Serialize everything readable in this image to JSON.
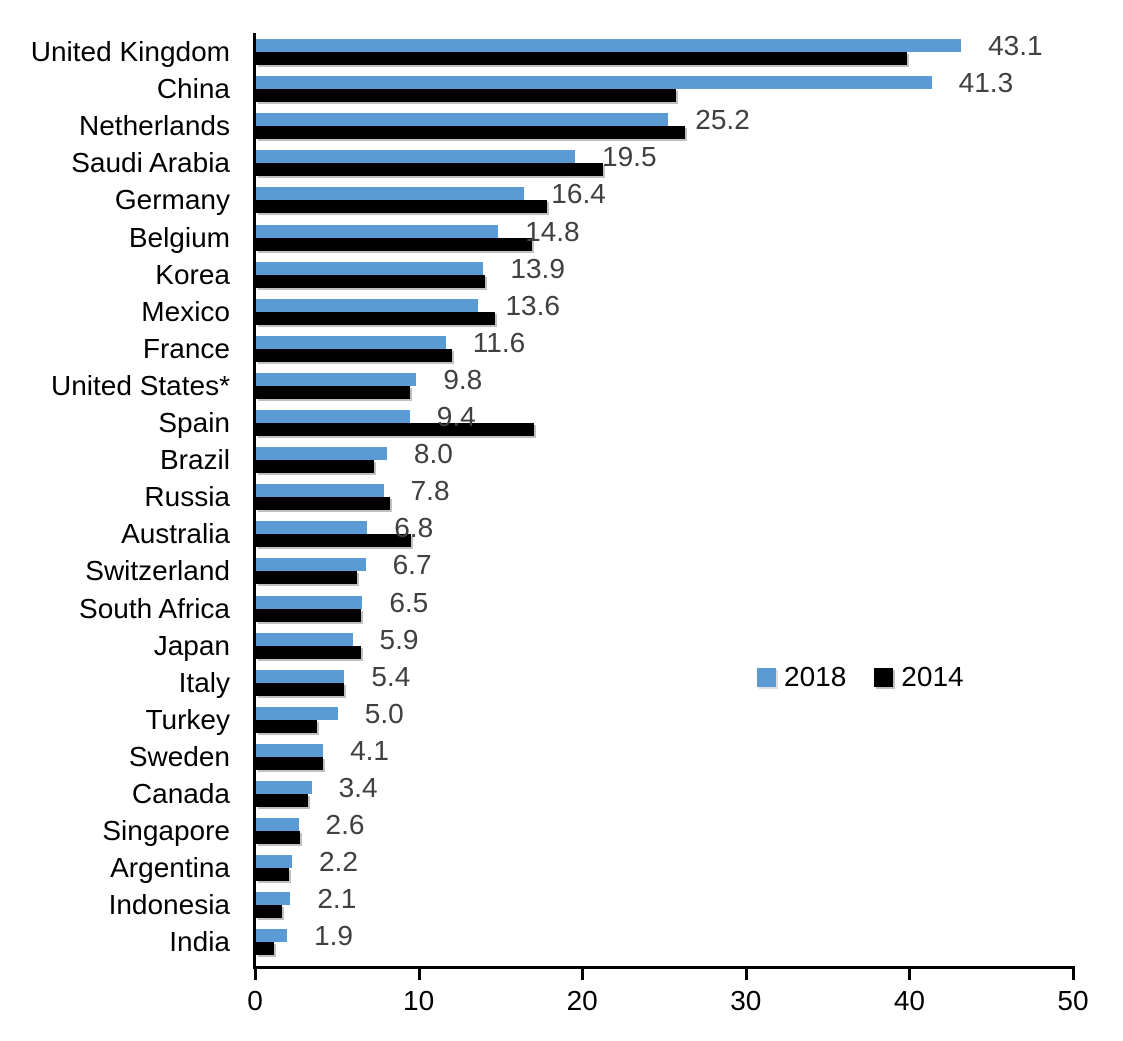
{
  "chart_data": {
    "type": "bar",
    "orientation": "horizontal",
    "title": "",
    "xlabel": "",
    "ylabel": "",
    "xlim": [
      0,
      50
    ],
    "x_ticks": [
      "0",
      "10",
      "20",
      "30",
      "40",
      "50"
    ],
    "grid": false,
    "legend_position": "middle-right",
    "categories": [
      "United Kingdom",
      "China",
      "Netherlands",
      "Saudi Arabia",
      "Germany",
      "Belgium",
      "Korea",
      "Mexico",
      "France",
      "United States*",
      "Spain",
      "Brazil",
      "Russia",
      "Australia",
      "Switzerland",
      "South Africa",
      "Japan",
      "Italy",
      "Turkey",
      "Sweden",
      "Canada",
      "Singapore",
      "Argentina",
      "Indonesia",
      "India"
    ],
    "series": [
      {
        "name": "2014",
        "color": "#000000",
        "values": [
          39.8,
          25.7,
          26.2,
          21.2,
          17.8,
          16.9,
          14.0,
          14.6,
          12.0,
          9.4,
          17.0,
          7.2,
          8.2,
          9.5,
          6.2,
          6.4,
          6.4,
          5.4,
          3.7,
          4.1,
          3.2,
          2.7,
          2.0,
          1.6,
          1.1
        ],
        "data_labels_shown": false
      },
      {
        "name": "2018",
        "color": "#5B9BD5",
        "values": [
          43.1,
          41.3,
          25.2,
          19.5,
          16.4,
          14.8,
          13.9,
          13.6,
          11.6,
          9.8,
          9.4,
          8.0,
          7.8,
          6.8,
          6.7,
          6.5,
          5.9,
          5.4,
          5.0,
          4.1,
          3.4,
          2.6,
          2.2,
          2.1,
          1.9
        ],
        "data_labels_shown": true,
        "data_labels": [
          "43.1",
          "41.3",
          "25.2",
          "19.5",
          "16.4",
          "14.8",
          "13.9",
          "13.6",
          "11.6",
          "9.8",
          "9.4",
          "8.0",
          "7.8",
          "6.8",
          "6.7",
          "6.5",
          "5.9",
          "5.4",
          "5.0",
          "4.1",
          "3.4",
          "2.6",
          "2.2",
          "2.1",
          "1.9"
        ]
      }
    ],
    "colors": {
      "axis": "#000000",
      "category_label": "#000000",
      "tick_label": "#000000",
      "value_label": "#404040",
      "series_2018": "#5B9BD5",
      "series_2014": "#000000"
    }
  }
}
